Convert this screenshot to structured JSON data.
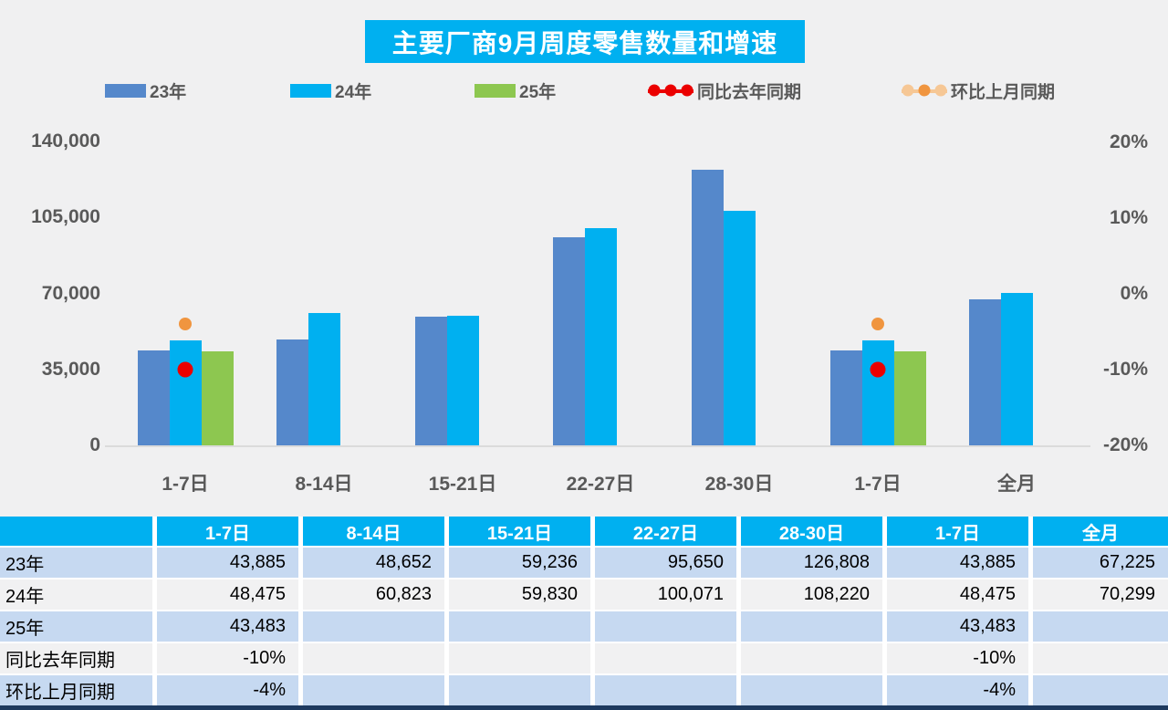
{
  "title": "主要厂商9月周度零售数量和增速",
  "colors": {
    "accent_cyan": "#00B0F0",
    "bar_blue": "#5588CB",
    "bar_cyan": "#00B0F0",
    "bar_green": "#8DC750",
    "dot_red": "#EB0000",
    "dot_orange": "#F0953F",
    "dot_orange_light": "#F6C795",
    "row_blue": "#C6D9F1",
    "row_gray": "#F1F1F2",
    "axis_text": "#595959",
    "bottom_strip": "#1E3A5F"
  },
  "legend": [
    {
      "label": "23年",
      "marker": "swatch",
      "color": "#5588CB"
    },
    {
      "label": "24年",
      "marker": "swatch",
      "color": "#00B0F0"
    },
    {
      "label": "25年",
      "marker": "swatch",
      "color": "#8DC750"
    },
    {
      "label": "同比去年同期",
      "marker": "line-dots",
      "line_color": "#EB0000",
      "dot_colors": [
        "#EB0000",
        "#EB0000",
        "#EB0000"
      ]
    },
    {
      "label": "环比上月同期",
      "marker": "line-dots",
      "line_color": "#F6C795",
      "dot_colors": [
        "#F6C795",
        "#F0953F",
        "#F6C795"
      ]
    }
  ],
  "chart_data": {
    "type": "bar",
    "title": "主要厂商9月周度零售数量和增速",
    "categories": [
      "1-7日",
      "8-14日",
      "15-21日",
      "22-27日",
      "28-30日",
      "1-7日",
      "全月"
    ],
    "series": [
      {
        "name": "23年",
        "color": "#5588CB",
        "values": [
          43885,
          48652,
          59236,
          95650,
          126808,
          43885,
          67225
        ]
      },
      {
        "name": "24年",
        "color": "#00B0F0",
        "values": [
          48475,
          60823,
          59830,
          100071,
          108220,
          48475,
          70299
        ]
      },
      {
        "name": "25年",
        "color": "#8DC750",
        "values": [
          43483,
          null,
          null,
          null,
          null,
          43483,
          null
        ]
      }
    ],
    "point_series": [
      {
        "name": "同比去年同期",
        "color": "#EB0000",
        "size": 17,
        "values_pct": [
          -10,
          null,
          null,
          null,
          null,
          -10,
          null
        ]
      },
      {
        "name": "环比上月同期",
        "color": "#F0953F",
        "size": 14,
        "values_pct": [
          -4,
          null,
          null,
          null,
          null,
          -4,
          null
        ]
      }
    ],
    "left_axis": {
      "ticks": [
        "140,000",
        "105,000",
        "70,000",
        "35,000",
        "0"
      ],
      "values": [
        140000,
        105000,
        70000,
        35000,
        0
      ],
      "min": 0,
      "max": 140000
    },
    "right_axis": {
      "ticks": [
        "20%",
        "10%",
        "0%",
        "-10%",
        "-20%"
      ],
      "values": [
        20,
        10,
        0,
        -10,
        -20
      ],
      "min": -20,
      "max": 20
    },
    "grid": false,
    "legend_position": "top"
  },
  "table": {
    "columns": [
      "",
      "1-7日",
      "8-14日",
      "15-21日",
      "22-27日",
      "28-30日",
      "1-7日",
      "全月"
    ],
    "rows": [
      {
        "label": "23年",
        "cells": [
          "43,885",
          "48,652",
          "59,236",
          "95,650",
          "126,808",
          "43,885",
          "67,225"
        ]
      },
      {
        "label": "24年",
        "cells": [
          "48,475",
          "60,823",
          "59,830",
          "100,071",
          "108,220",
          "48,475",
          "70,299"
        ]
      },
      {
        "label": "25年",
        "cells": [
          "43,483",
          "",
          "",
          "",
          "",
          "43,483",
          ""
        ]
      },
      {
        "label": "同比去年同期",
        "cells": [
          "-10%",
          "",
          "",
          "",
          "",
          "-10%",
          ""
        ]
      },
      {
        "label": "环比上月同期",
        "cells": [
          "-4%",
          "",
          "",
          "",
          "",
          "-4%",
          ""
        ]
      }
    ]
  }
}
